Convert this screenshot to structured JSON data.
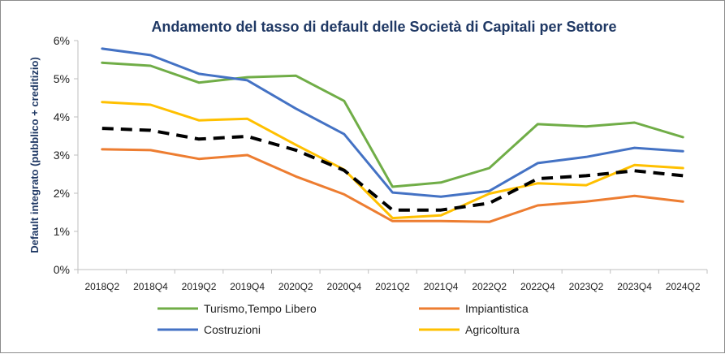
{
  "chart_data": {
    "type": "line",
    "title": "Andamento del tasso di default delle Società di Capitali per Settore",
    "xlabel": "",
    "ylabel": "Default integrato (pubblico + creditizio)",
    "categories": [
      "2018Q2",
      "2018Q4",
      "2019Q2",
      "2019Q4",
      "2020Q2",
      "2020Q4",
      "2021Q2",
      "2021Q4",
      "2022Q2",
      "2022Q4",
      "2023Q2",
      "2023Q4",
      "2024Q2"
    ],
    "y_ticks": [
      "0%",
      "1%",
      "2%",
      "3%",
      "4%",
      "5%",
      "6%"
    ],
    "ylim": [
      0,
      6
    ],
    "grid": false,
    "legend_position": "bottom",
    "series": [
      {
        "name": "Turismo,Tempo Libero",
        "color": "#70ad47",
        "dash": "solid",
        "in_legend": true,
        "values": [
          5.42,
          5.34,
          4.9,
          5.04,
          5.08,
          4.42,
          2.17,
          2.28,
          2.66,
          3.81,
          3.75,
          3.85,
          3.47
        ]
      },
      {
        "name": "Impiantistica",
        "color": "#ed7d31",
        "dash": "solid",
        "in_legend": true,
        "values": [
          3.15,
          3.13,
          2.9,
          3.0,
          2.44,
          1.97,
          1.27,
          1.27,
          1.25,
          1.68,
          1.78,
          1.93,
          1.78
        ]
      },
      {
        "name": "Costruzioni",
        "color": "#4472c4",
        "dash": "solid",
        "in_legend": true,
        "values": [
          5.79,
          5.62,
          5.13,
          4.96,
          4.22,
          3.55,
          2.02,
          1.91,
          2.06,
          2.79,
          2.95,
          3.19,
          3.1
        ]
      },
      {
        "name": "Agricoltura",
        "color": "#ffc000",
        "dash": "solid",
        "in_legend": true,
        "values": [
          4.39,
          4.32,
          3.91,
          3.95,
          3.27,
          2.62,
          1.35,
          1.42,
          1.99,
          2.26,
          2.21,
          2.74,
          2.66
        ]
      },
      {
        "name": "",
        "color": "#000000",
        "dash": "dashed",
        "in_legend": false,
        "values": [
          3.7,
          3.65,
          3.42,
          3.49,
          3.13,
          2.6,
          1.56,
          1.56,
          1.74,
          2.38,
          2.46,
          2.59,
          2.46
        ]
      }
    ]
  }
}
